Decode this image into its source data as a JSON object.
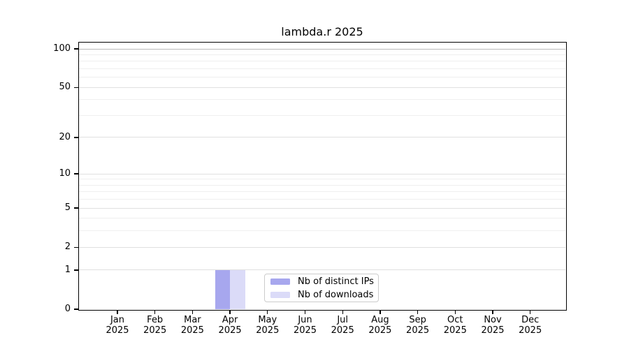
{
  "chart_data": {
    "type": "bar",
    "title": "lambda.r 2025",
    "categories": [
      "Jan",
      "Feb",
      "Mar",
      "Apr",
      "May",
      "Jun",
      "Jul",
      "Aug",
      "Sep",
      "Oct",
      "Nov",
      "Dec"
    ],
    "x_tick_year": "2025",
    "series": [
      {
        "name": "Nb of distinct IPs",
        "color": "#a7a7ee",
        "values": [
          0,
          0,
          0,
          1,
          0,
          0,
          0,
          0,
          0,
          0,
          0,
          0
        ]
      },
      {
        "name": "Nb of downloads",
        "color": "#dbdbf8",
        "values": [
          0,
          0,
          0,
          1,
          0,
          0,
          0,
          0,
          0,
          0,
          0,
          0
        ]
      }
    ],
    "y_scale": "log1p",
    "ylim": [
      0,
      100
    ],
    "y_major_ticks": [
      0,
      1,
      2,
      5,
      10,
      20,
      50,
      100
    ],
    "y_minor_gridlines": [
      3,
      4,
      6,
      7,
      8,
      9,
      30,
      40,
      60,
      70,
      80,
      90
    ],
    "grid": true,
    "legend_position": "lower center",
    "colors": {
      "major_grid": "#e0e0e0",
      "minor_grid": "#efefef",
      "top_grid": "#b9b9b9",
      "axis": "#000000",
      "legend_border": "#cccccc"
    }
  }
}
